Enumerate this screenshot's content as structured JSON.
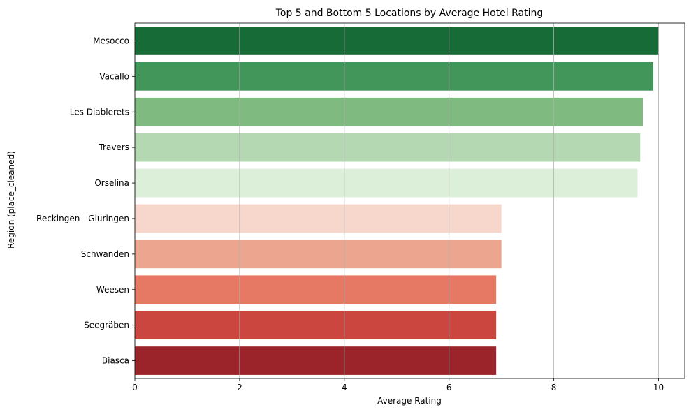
{
  "chart_data": {
    "type": "bar",
    "orientation": "horizontal",
    "title": "Top 5 and Bottom 5 Locations by Average Hotel Rating",
    "xlabel": "Average Rating",
    "ylabel": "Region (place_cleaned)",
    "categories": [
      "Mesocco",
      "Vacallo",
      "Les Diablerets",
      "Travers",
      "Orselina",
      "Reckingen - Gluringen",
      "Schwanden",
      "Weesen",
      "Seegräben",
      "Biasca"
    ],
    "values": [
      10.0,
      9.9,
      9.7,
      9.65,
      9.6,
      7.0,
      7.0,
      6.9,
      6.9,
      6.9
    ],
    "colors": [
      "#176b37",
      "#42965a",
      "#7fba80",
      "#b4d8b1",
      "#dcefd9",
      "#f7d6cb",
      "#eca68f",
      "#e67963",
      "#cb463f",
      "#9b242a"
    ],
    "xlim": [
      0,
      10.5
    ],
    "xticks": [
      0,
      2,
      4,
      6,
      8,
      10
    ],
    "xtick_labels": [
      "0",
      "2",
      "4",
      "6",
      "8",
      "10"
    ],
    "grid": "x"
  }
}
